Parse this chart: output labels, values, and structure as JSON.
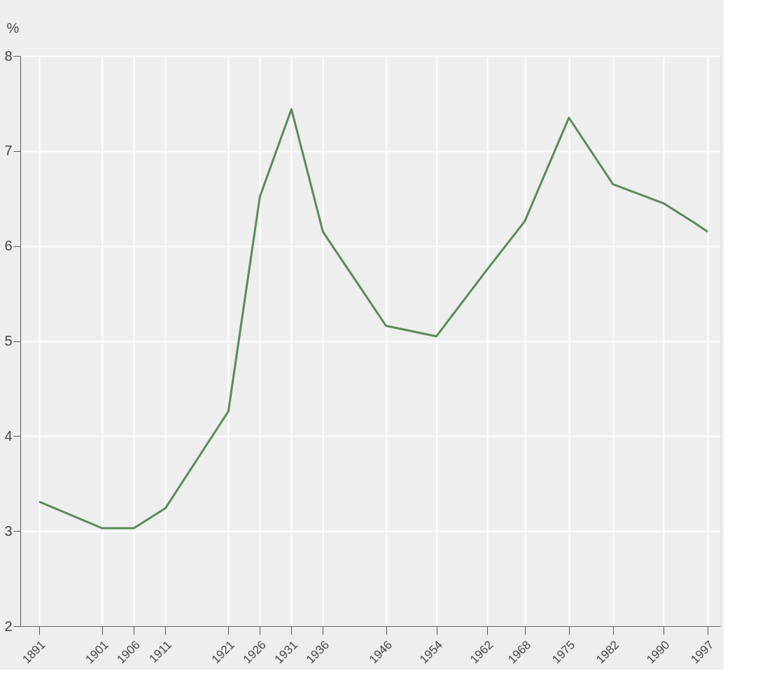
{
  "chart_data": {
    "type": "line",
    "ylabel": "%",
    "x": [
      1891,
      1901,
      1906,
      1911,
      1921,
      1926,
      1931,
      1936,
      1946,
      1954,
      1962,
      1968,
      1975,
      1982,
      1990,
      1995,
      1997
    ],
    "series": [
      {
        "color": "#5b8a5b",
        "values": [
          3.31,
          3.03,
          3.03,
          3.24,
          4.26,
          6.52,
          7.44,
          6.15,
          5.16,
          5.05,
          5.75,
          6.26,
          7.35,
          6.65,
          6.45,
          6.24,
          6.15
        ]
      }
    ],
    "xlim": [
      1888,
      1999
    ],
    "xticks": [
      1891,
      1901,
      1906,
      1911,
      1921,
      1926,
      1931,
      1936,
      1946,
      1954,
      1962,
      1968,
      1975,
      1982,
      1990,
      1997
    ],
    "ylim": [
      2,
      8
    ],
    "yticks": [
      2,
      3,
      4,
      5,
      6,
      7,
      8
    ],
    "grid": true,
    "marker": "none",
    "line_style": "solid"
  }
}
